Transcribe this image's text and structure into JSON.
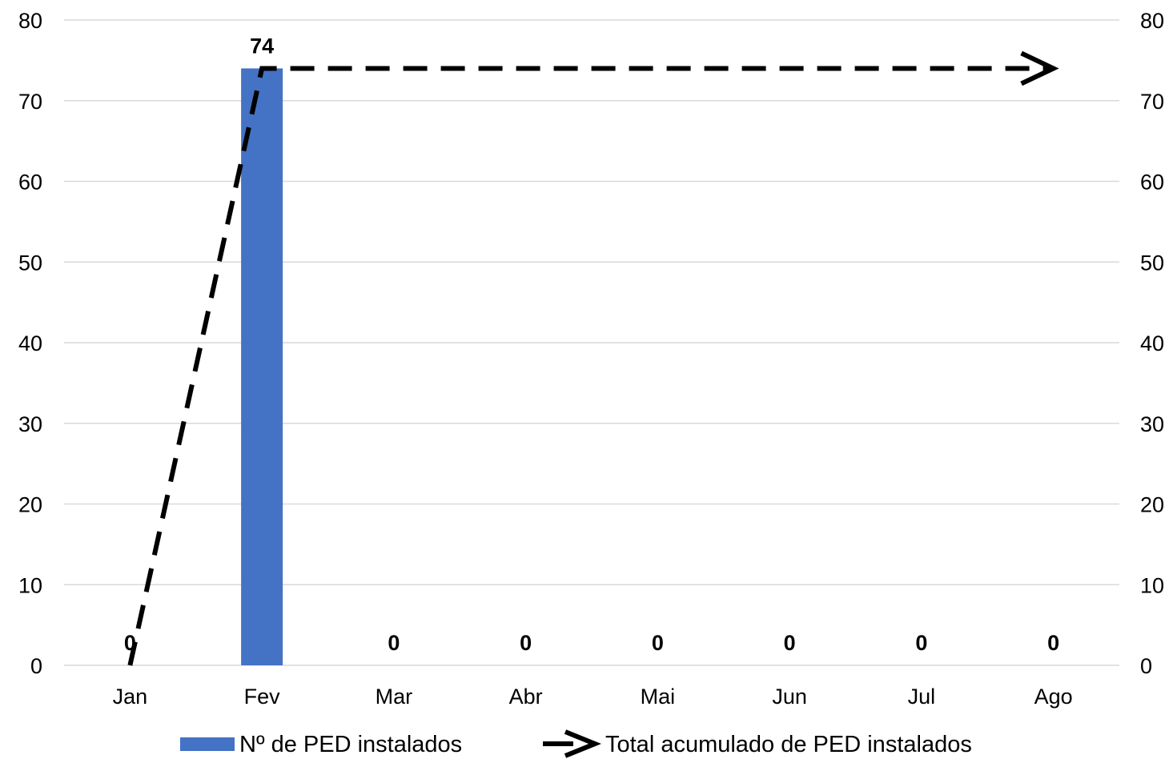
{
  "chart_data": {
    "type": "bar",
    "categories": [
      "Jan",
      "Fev",
      "Mar",
      "Abr",
      "Mai",
      "Jun",
      "Jul",
      "Ago"
    ],
    "series": [
      {
        "name": "Nº de PED instalados",
        "chart_type": "bar",
        "axis": "left",
        "color": "#4472c4",
        "values": [
          0,
          74,
          0,
          0,
          0,
          0,
          0,
          0
        ],
        "data_labels": [
          "0",
          "74",
          "0",
          "0",
          "0",
          "0",
          "0",
          "0"
        ]
      },
      {
        "name": "Total acumulado de PED instalados",
        "chart_type": "line",
        "axis": "right",
        "color": "#000000",
        "line_style": "dashed",
        "end_marker": "arrow",
        "values": [
          0,
          74,
          74,
          74,
          74,
          74,
          74,
          74
        ]
      }
    ],
    "ylim": [
      0,
      80
    ],
    "y2lim": [
      0,
      80
    ],
    "yticks": [
      "0",
      "10",
      "20",
      "30",
      "40",
      "50",
      "60",
      "70",
      "80"
    ],
    "y2ticks": [
      "0",
      "10",
      "20",
      "30",
      "40",
      "50",
      "60",
      "70",
      "80"
    ],
    "title": "",
    "xlabel": "",
    "ylabel": "",
    "grid": true,
    "legend_position": "bottom"
  }
}
